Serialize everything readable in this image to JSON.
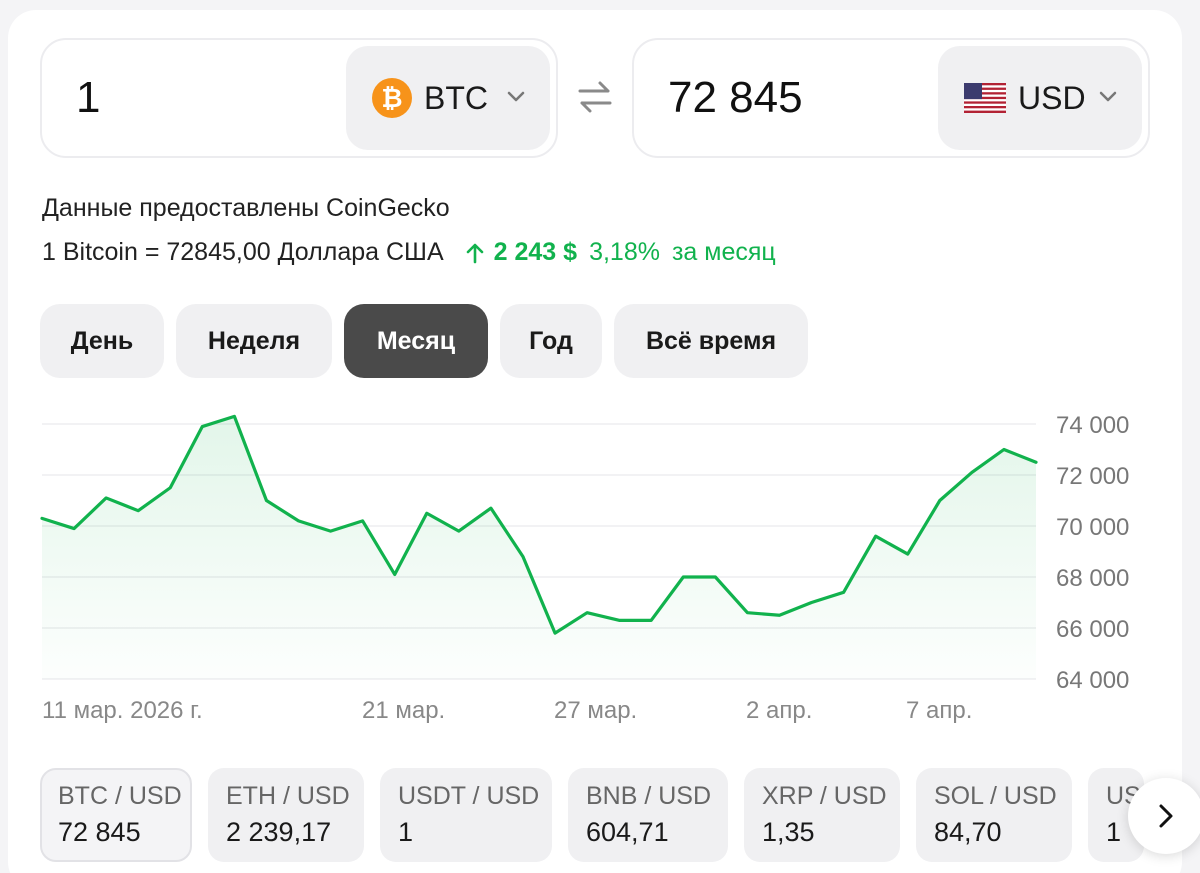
{
  "converter": {
    "from": {
      "amount": "1",
      "currency": "BTC",
      "icon": "bitcoin-coin-icon"
    },
    "to": {
      "amount": "72 845",
      "currency": "USD",
      "icon": "us-flag-icon"
    }
  },
  "provider_text": "Данные предоставлены CoinGecko",
  "rate": {
    "text": "1 Bitcoin = 72845,00 Доллара США",
    "change_abs": "2 243 $",
    "change_pct": "3,18%",
    "period_text": "за месяц",
    "change_color": "#11b24d"
  },
  "periods": [
    "День",
    "Неделя",
    "Месяц",
    "Год",
    "Всё время"
  ],
  "active_period": "Месяц",
  "chart_data": {
    "type": "area",
    "x_tick_labels": [
      "11 мар. 2026 г.",
      "21 мар.",
      "27 мар.",
      "2 апр.",
      "7 апр."
    ],
    "y_ticks": [
      "74 000",
      "72 000",
      "70 000",
      "68 000",
      "66 000",
      "64 000"
    ],
    "ylim": [
      64000,
      74000
    ],
    "grid": true,
    "series": [
      {
        "values": [
          70300,
          69900,
          71100,
          70600,
          71500,
          73900,
          74300,
          71000,
          70200,
          69800,
          70200,
          68100,
          70500,
          69800,
          70700,
          68800,
          65800,
          66600,
          66300,
          66300,
          68000,
          68000,
          66600,
          66500,
          67000,
          67400,
          69600,
          68900,
          71000,
          72100,
          73000,
          72500
        ],
        "color": "#11b24d"
      }
    ]
  },
  "pairs": [
    {
      "name": "BTC / USD",
      "value": "72 845"
    },
    {
      "name": "ETH / USD",
      "value": "2 239,17"
    },
    {
      "name": "USDT / USD",
      "value": "1"
    },
    {
      "name": "BNB / USD",
      "value": "604,71"
    },
    {
      "name": "XRP / USD",
      "value": "1,35"
    },
    {
      "name": "SOL / USD",
      "value": "84,70"
    },
    {
      "name": "USDC / USD",
      "value": "1"
    }
  ]
}
